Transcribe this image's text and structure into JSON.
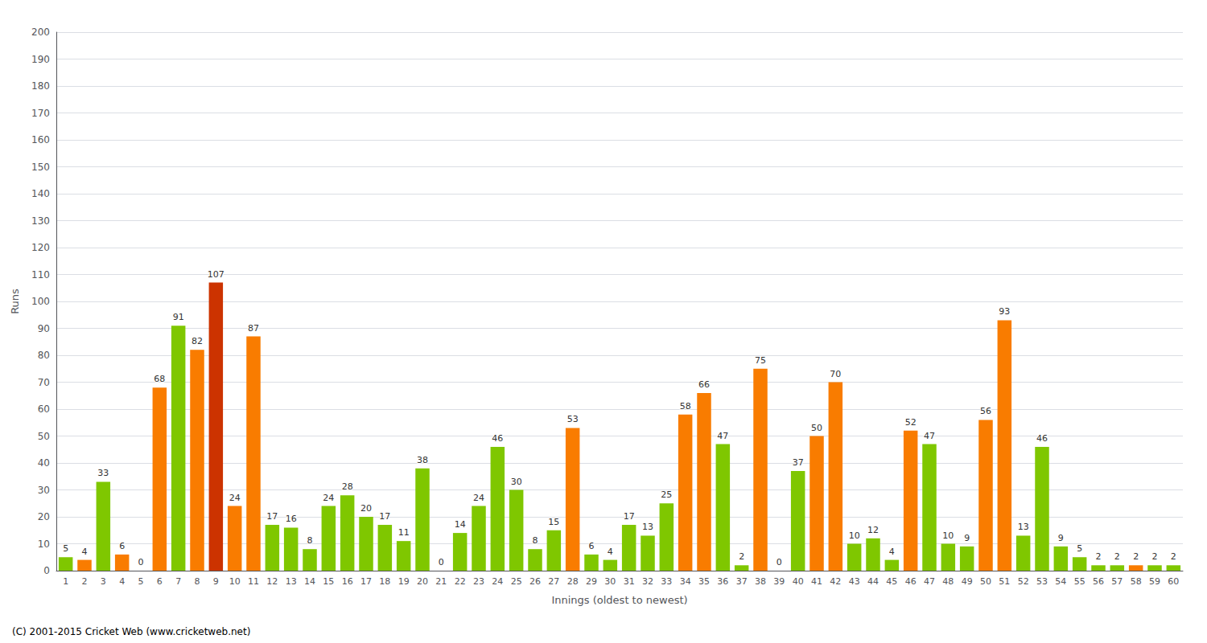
{
  "chart_data": {
    "type": "bar",
    "xlabel": "Innings (oldest to newest)",
    "ylabel": "Runs",
    "categories": [
      "1",
      "2",
      "3",
      "4",
      "5",
      "6",
      "7",
      "8",
      "9",
      "10",
      "11",
      "12",
      "13",
      "14",
      "15",
      "16",
      "17",
      "18",
      "19",
      "20",
      "21",
      "22",
      "23",
      "24",
      "25",
      "26",
      "27",
      "28",
      "29",
      "30",
      "31",
      "32",
      "33",
      "34",
      "35",
      "36",
      "37",
      "38",
      "39",
      "40",
      "41",
      "42",
      "43",
      "44",
      "45",
      "46",
      "47",
      "48",
      "49",
      "50",
      "51",
      "52",
      "53",
      "54",
      "55",
      "56",
      "57",
      "58",
      "59",
      "60"
    ],
    "values": [
      5,
      4,
      33,
      6,
      0,
      68,
      91,
      82,
      107,
      24,
      87,
      17,
      16,
      8,
      24,
      28,
      20,
      17,
      11,
      38,
      0,
      14,
      24,
      46,
      30,
      8,
      15,
      53,
      6,
      4,
      17,
      13,
      25,
      58,
      66,
      47,
      2,
      75,
      0,
      37,
      50,
      70,
      10,
      12,
      4,
      52,
      47,
      10,
      9,
      56,
      93,
      13,
      46,
      9,
      5,
      2,
      2,
      2,
      2,
      2
    ],
    "colors": [
      "#7fc700",
      "#f97c00",
      "#7fc700",
      "#f97c00",
      "#7fc700",
      "#f97c00",
      "#7fc700",
      "#f97c00",
      "#cc3300",
      "#f97c00",
      "#f97c00",
      "#7fc700",
      "#7fc700",
      "#7fc700",
      "#7fc700",
      "#7fc700",
      "#7fc700",
      "#7fc700",
      "#7fc700",
      "#7fc700",
      "#7fc700",
      "#7fc700",
      "#7fc700",
      "#7fc700",
      "#7fc700",
      "#7fc700",
      "#7fc700",
      "#f97c00",
      "#7fc700",
      "#7fc700",
      "#7fc700",
      "#7fc700",
      "#7fc700",
      "#f97c00",
      "#f97c00",
      "#7fc700",
      "#7fc700",
      "#f97c00",
      "#7fc700",
      "#7fc700",
      "#f97c00",
      "#f97c00",
      "#7fc700",
      "#7fc700",
      "#7fc700",
      "#f97c00",
      "#7fc700",
      "#7fc700",
      "#7fc700",
      "#f97c00",
      "#f97c00",
      "#7fc700",
      "#7fc700",
      "#7fc700",
      "#7fc700",
      "#7fc700",
      "#7fc700",
      "#f97c00",
      "#7fc700",
      "#7fc700"
    ],
    "ylim": [
      0,
      200
    ],
    "yticks": [
      0,
      10,
      20,
      30,
      40,
      50,
      60,
      70,
      80,
      90,
      100,
      110,
      120,
      130,
      140,
      150,
      160,
      170,
      180,
      190,
      200
    ],
    "grid": true,
    "data_labels": true,
    "annotations": [
      "(C) 2001-2015 Cricket Web (www.cricketweb.net)"
    ]
  }
}
